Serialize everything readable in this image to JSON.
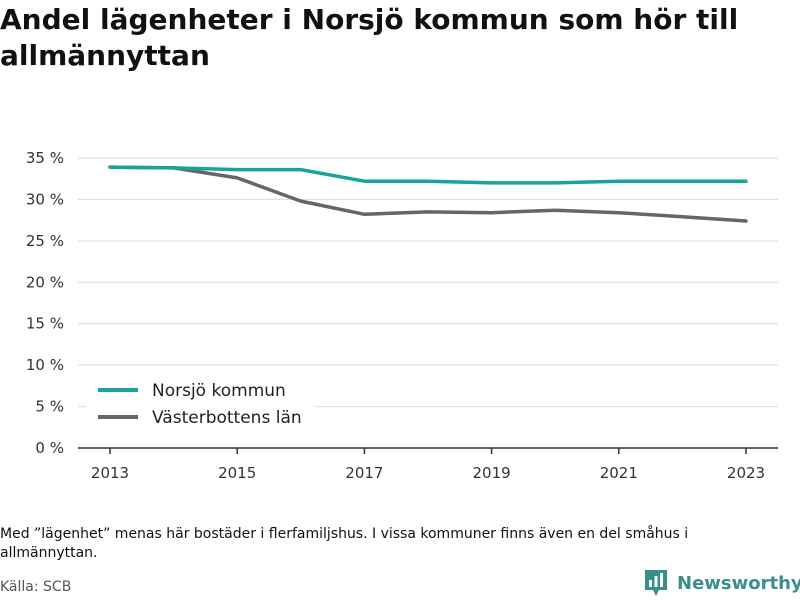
{
  "title": "Andel lägenheter i Norsjö kommun som hör till allmännyttan",
  "note": "Med ”lägenhet” menas här bostäder i flerfamiljshus. I vissa kommuner finns även en del småhus i allmännyttan.",
  "source": "Källa: SCB",
  "brand": {
    "name": "Newsworthy",
    "icon": "newsworthy-logo-icon",
    "color": "#3a8f8b"
  },
  "chart_data": {
    "type": "line",
    "title": "Andel lägenheter i Norsjö kommun som hör till allmännyttan",
    "xlabel": "",
    "ylabel": "",
    "x": [
      2013,
      2014,
      2015,
      2016,
      2017,
      2018,
      2019,
      2020,
      2021,
      2022,
      2023
    ],
    "x_ticks": [
      "2013",
      "2015",
      "2017",
      "2019",
      "2021",
      "2023"
    ],
    "y_ticks": [
      "0 %",
      "5 %",
      "10 %",
      "15 %",
      "20 %",
      "25 %",
      "30 %",
      "35 %"
    ],
    "ylim": [
      0,
      35
    ],
    "grid": true,
    "legend_position": "bottom-left",
    "series": [
      {
        "name": "Norsjö kommun",
        "color": "#1aa39a",
        "values": [
          33.9,
          33.8,
          33.6,
          33.6,
          32.2,
          32.2,
          32.0,
          32.0,
          32.2,
          32.2,
          32.2
        ]
      },
      {
        "name": "Västerbottens län",
        "color": "#666666",
        "values": [
          33.9,
          33.8,
          32.6,
          29.8,
          28.2,
          28.5,
          28.4,
          28.7,
          28.4,
          27.9,
          27.4
        ]
      }
    ]
  }
}
